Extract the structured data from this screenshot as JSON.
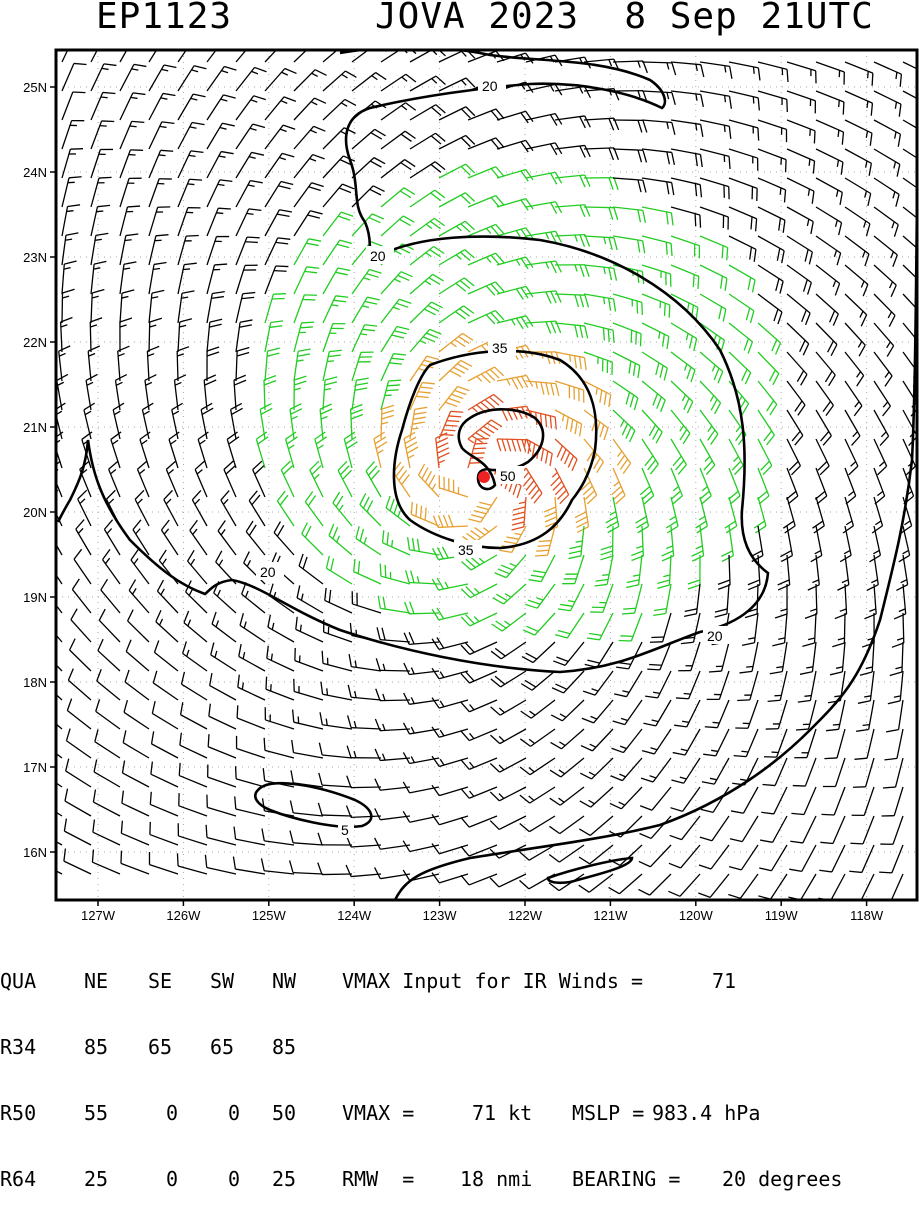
{
  "header": {
    "storm_id": "EP1123",
    "storm_label": "JOVA 2023  8 Sep 21UTC"
  },
  "map": {
    "lat_labels": [
      "25N",
      "24N",
      "23N",
      "22N",
      "21N",
      "20N",
      "19N",
      "18N",
      "17N",
      "16N"
    ],
    "lon_labels": [
      "127W",
      "126W",
      "125W",
      "124W",
      "123W",
      "122W",
      "121W",
      "120W",
      "119W",
      "118W"
    ],
    "lat_values": [
      25,
      24,
      23,
      22,
      21,
      20,
      19,
      18,
      17,
      16
    ],
    "lon_values": [
      -127,
      -126,
      -125,
      -124,
      -123,
      -122,
      -121,
      -120,
      -119,
      -118
    ],
    "center": {
      "lat": 20.4,
      "lon": -122.5
    },
    "contour_labels": {
      "c20a": "20",
      "c20b": "20",
      "c20c": "20",
      "c20d": "20",
      "c35a": "35",
      "c35b": "35",
      "c50": "50",
      "c5": "5"
    },
    "colors": {
      "low": "#000000",
      "gale": "#22cc22",
      "storm": "#e6a030",
      "hurricane": "#e05020",
      "center": "#ee2222"
    }
  },
  "info": {
    "quadrant_header": {
      "label": "QUA",
      "ne": "NE",
      "se": "SE",
      "sw": "SW",
      "nw": "NW"
    },
    "radii": [
      {
        "label": "R34",
        "ne": "85",
        "se": "65",
        "sw": "65",
        "nw": "85"
      },
      {
        "label": "R50",
        "ne": "55",
        "se": "0",
        "sw": "0",
        "nw": "50"
      },
      {
        "label": "R64",
        "ne": "25",
        "se": "0",
        "sw": "0",
        "nw": "25"
      }
    ],
    "vmax_input_text": "VMAX Input for IR Winds =",
    "vmax_input_value": "71",
    "vmax_text": "VMAX =",
    "vmax_value": "71 kt",
    "mslp_text": "MSLP =",
    "mslp_value": "983.4 hPa",
    "rmw_text": "RMW  =",
    "rmw_value": "18 nmi",
    "bearing_text": "BEARING =",
    "bearing_value": "20 degrees"
  }
}
